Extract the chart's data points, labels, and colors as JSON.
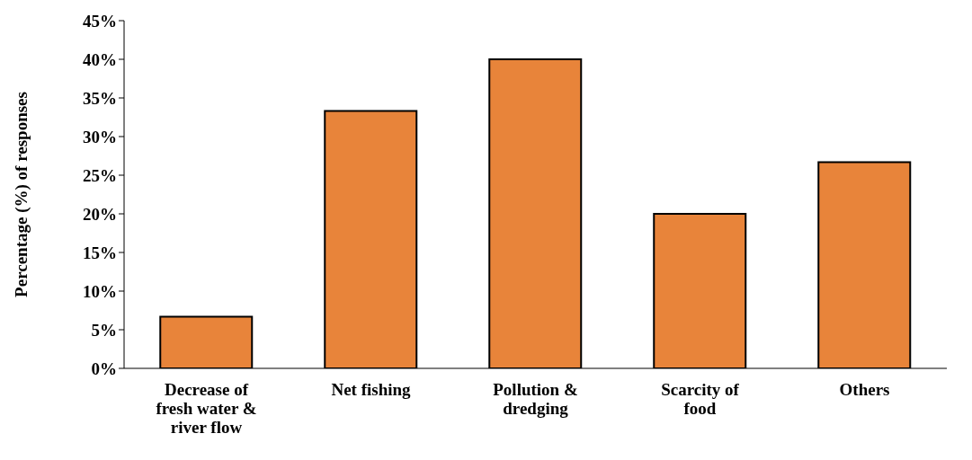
{
  "chart_data": {
    "type": "bar",
    "ylabel": "Percentage (%) of responses",
    "categories": [
      "Decrease of fresh water & river flow",
      "Net fishing",
      "Pollution & dredging",
      "Scarcity of food",
      "Others"
    ],
    "values": [
      6.7,
      33.3,
      40,
      20,
      26.7
    ],
    "color": "#e8843a",
    "ylim": [
      0,
      45
    ],
    "yticks": [
      {
        "value": 0,
        "label": "0%"
      },
      {
        "value": 5,
        "label": "5%"
      },
      {
        "value": 10,
        "label": "10%"
      },
      {
        "value": 15,
        "label": "15%"
      },
      {
        "value": 20,
        "label": "20%"
      },
      {
        "value": 25,
        "label": "25%"
      },
      {
        "value": 30,
        "label": "30%"
      },
      {
        "value": 35,
        "label": "35%"
      },
      {
        "value": 40,
        "label": "40%"
      },
      {
        "value": 45,
        "label": "45%"
      }
    ],
    "grid": false
  }
}
